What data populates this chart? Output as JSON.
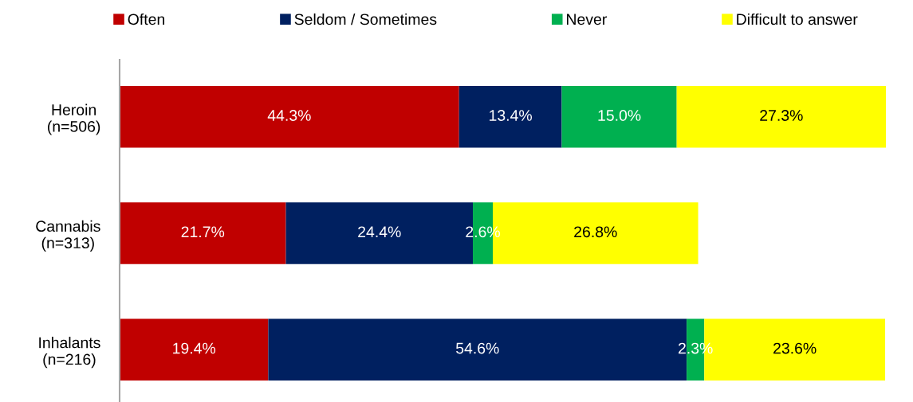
{
  "chart_data": {
    "type": "bar",
    "orientation": "horizontal",
    "stacked": true,
    "legend": "top",
    "grid": false,
    "categories": [
      "Heroin\n(n=506)",
      "Cannabis\n(n=313)",
      "Inhalants\n(n=216)"
    ],
    "series": [
      {
        "name": "Often",
        "color": "#c00000",
        "values": [
          44.3,
          21.7,
          19.4
        ],
        "value_labels": [
          "44.3%",
          "21.7%",
          "19.4%"
        ]
      },
      {
        "name": "Seldom / Sometimes",
        "color": "#002060",
        "values": [
          13.4,
          24.4,
          54.6
        ],
        "value_labels": [
          "13.4%",
          "24.4%",
          "54.6%"
        ]
      },
      {
        "name": "Never",
        "color": "#00b050",
        "values": [
          15.0,
          2.6,
          2.3
        ],
        "value_labels": [
          "15.0%",
          "2.6%",
          "2.3%"
        ]
      },
      {
        "name": "Difficult to answer",
        "color": "#ffff00",
        "values": [
          27.3,
          26.8,
          23.6
        ],
        "value_labels": [
          "27.3%",
          "26.8%",
          "23.6%"
        ]
      }
    ]
  }
}
